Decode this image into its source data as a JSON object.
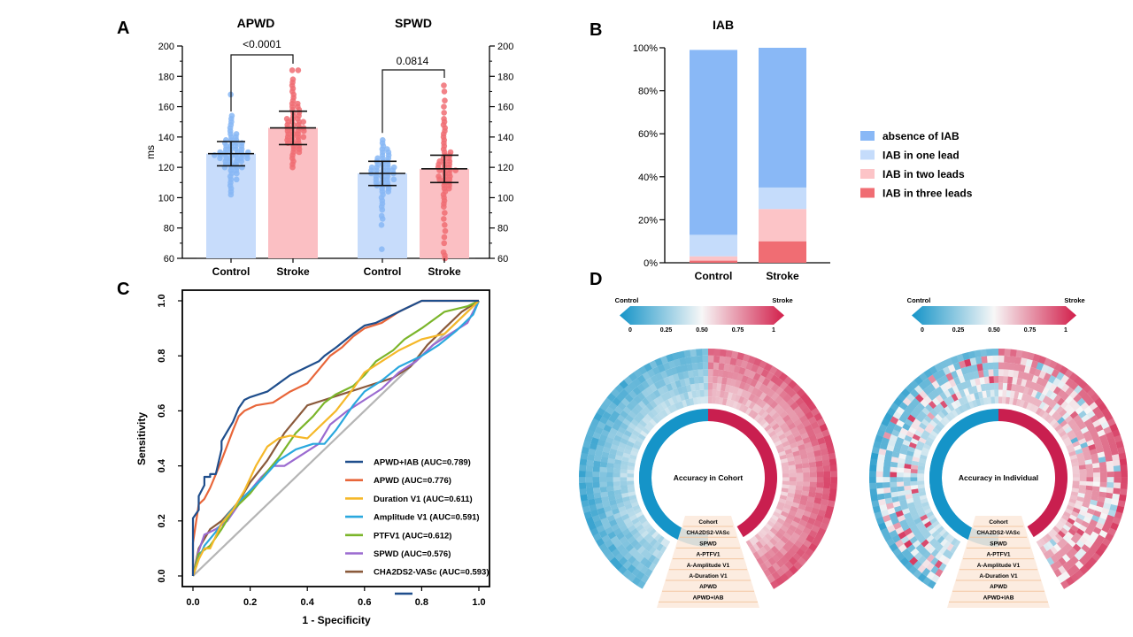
{
  "colors": {
    "control_fill": "#c7dcfb",
    "control_dot": "#87b7f5",
    "stroke_fill": "#fbbfc3",
    "stroke_dot": "#f06d73",
    "absence": "#89b8f6",
    "one_lead": "#c5dcfb",
    "two_leads": "#fcc4c7",
    "three_leads": "#f06d73",
    "heat_low": "#1594c8",
    "heat_high": "#d21f4b"
  },
  "panels": {
    "a": "A",
    "b": "B",
    "c": "C",
    "d": "D"
  },
  "chart_data": [
    {
      "id": "A",
      "type": "bar",
      "ylabel": "ms",
      "ylim": [
        60,
        200
      ],
      "yticks": [
        60,
        80,
        100,
        120,
        140,
        160,
        180,
        200
      ],
      "groups": [
        {
          "title": "APWD",
          "p_value": "<0.0001",
          "categories": [
            "Control",
            "Stroke"
          ],
          "means": [
            129,
            146
          ],
          "sd": [
            8,
            11
          ],
          "points": [
            [
              104,
              106,
              108,
              110,
              112,
              112,
              114,
              116,
              116,
              118,
              118,
              120,
              120,
              120,
              122,
              122,
              122,
              124,
              124,
              124,
              124,
              126,
              126,
              126,
              126,
              126,
              128,
              128,
              128,
              128,
              128,
              128,
              130,
              130,
              130,
              130,
              130,
              132,
              132,
              132,
              132,
              134,
              134,
              134,
              134,
              136,
              136,
              136,
              138,
              138,
              138,
              140,
              140,
              142,
              142,
              144,
              146,
              148,
              150,
              152,
              154,
              168,
              102,
              120,
              126,
              130,
              136,
              128
            ],
            [
              120,
              122,
              124,
              126,
              128,
              130,
              130,
              132,
              132,
              134,
              134,
              136,
              136,
              138,
              138,
              138,
              140,
              140,
              140,
              142,
              142,
              142,
              144,
              144,
              144,
              144,
              146,
              146,
              146,
              148,
              148,
              148,
              150,
              150,
              150,
              152,
              152,
              152,
              154,
              154,
              156,
              156,
              158,
              158,
              160,
              160,
              162,
              162,
              164,
              166,
              168,
              170,
              172,
              174,
              176,
              178,
              184,
              184,
              140,
              146,
              136,
              150
            ]
          ]
        },
        {
          "title": "SPWD",
          "p_value": "0.0814",
          "categories": [
            "Control",
            "Stroke"
          ],
          "means": [
            116,
            119
          ],
          "sd": [
            8,
            9
          ],
          "points": [
            [
              66,
              82,
              86,
              88,
              92,
              94,
              96,
              98,
              100,
              102,
              104,
              104,
              106,
              106,
              108,
              108,
              110,
              110,
              110,
              112,
              112,
              112,
              114,
              114,
              114,
              116,
              116,
              116,
              116,
              118,
              118,
              118,
              118,
              120,
              120,
              120,
              120,
              122,
              122,
              122,
              124,
              124,
              124,
              126,
              126,
              126,
              128,
              128,
              130,
              130,
              132,
              132,
              134,
              136,
              138,
              116,
              112,
              120,
              108,
              118
            ],
            [
              60,
              62,
              64,
              70,
              74,
              78,
              82,
              86,
              90,
              94,
              96,
              98,
              100,
              102,
              104,
              106,
              106,
              108,
              108,
              110,
              110,
              112,
              112,
              114,
              114,
              114,
              116,
              116,
              118,
              118,
              118,
              120,
              120,
              120,
              122,
              122,
              122,
              124,
              124,
              126,
              126,
              128,
              128,
              130,
              130,
              132,
              134,
              136,
              138,
              140,
              142,
              144,
              146,
              148,
              150,
              152,
              156,
              160,
              164,
              170,
              174,
              118,
              112,
              124
            ]
          ]
        }
      ]
    },
    {
      "id": "B",
      "type": "bar",
      "title": "IAB",
      "categories": [
        "Control",
        "Stroke"
      ],
      "yticks": [
        "0%",
        "20%",
        "40%",
        "60%",
        "80%",
        "100%"
      ],
      "ylim": [
        0,
        100
      ],
      "series": [
        {
          "name": "IAB in three leads",
          "values": [
            1,
            10
          ]
        },
        {
          "name": "IAB in two leads",
          "values": [
            2,
            15
          ]
        },
        {
          "name": "IAB in one lead",
          "values": [
            10,
            10
          ]
        },
        {
          "name": "absence of IAB",
          "values": [
            86,
            65
          ]
        }
      ],
      "legend": [
        "absence of IAB",
        "IAB in one lead",
        "IAB in two leads",
        "IAB in three leads"
      ]
    },
    {
      "id": "C",
      "type": "line",
      "xlabel": "1 - Specificity",
      "ylabel": "Sensitivity",
      "xlim": [
        0,
        1
      ],
      "ylim": [
        0,
        1
      ],
      "ticks": [
        "0.0",
        "0.2",
        "0.4",
        "0.6",
        "0.8",
        "1.0"
      ],
      "series": [
        {
          "name": "APWD+IAB (AUC=0.789)",
          "color": "#1f4e8c",
          "x": [
            0,
            0,
            0.02,
            0.02,
            0.04,
            0.04,
            0.06,
            0.06,
            0.08,
            0.1,
            0.1,
            0.14,
            0.16,
            0.18,
            0.2,
            0.26,
            0.3,
            0.34,
            0.4,
            0.44,
            0.46,
            0.5,
            0.56,
            0.6,
            0.64,
            0.68,
            0.7,
            0.74,
            0.8,
            0.9,
            1
          ],
          "y": [
            0,
            0.21,
            0.24,
            0.29,
            0.33,
            0.36,
            0.36,
            0.37,
            0.37,
            0.46,
            0.49,
            0.56,
            0.61,
            0.64,
            0.65,
            0.67,
            0.7,
            0.73,
            0.76,
            0.78,
            0.8,
            0.83,
            0.88,
            0.91,
            0.92,
            0.94,
            0.95,
            0.97,
            1,
            1,
            1
          ]
        },
        {
          "name": "APWD (AUC=0.776)",
          "color": "#e8663a",
          "x": [
            0,
            0,
            0.02,
            0.04,
            0.06,
            0.1,
            0.14,
            0.16,
            0.18,
            0.22,
            0.28,
            0.34,
            0.4,
            0.44,
            0.48,
            0.52,
            0.56,
            0.6,
            0.66,
            0.72,
            0.8,
            0.9,
            1
          ],
          "y": [
            0,
            0.12,
            0.26,
            0.28,
            0.32,
            0.42,
            0.53,
            0.58,
            0.6,
            0.62,
            0.63,
            0.67,
            0.7,
            0.75,
            0.8,
            0.83,
            0.87,
            0.9,
            0.92,
            0.96,
            1,
            1,
            1
          ]
        },
        {
          "name": "Duration V1 (AUC=0.611)",
          "color": "#f5b829",
          "x": [
            0,
            0.02,
            0.04,
            0.06,
            0.1,
            0.14,
            0.18,
            0.22,
            0.26,
            0.3,
            0.34,
            0.4,
            0.44,
            0.5,
            0.56,
            0.6,
            0.66,
            0.72,
            0.8,
            0.88,
            0.94,
            1
          ],
          "y": [
            0,
            0.06,
            0.1,
            0.1,
            0.19,
            0.24,
            0.31,
            0.4,
            0.47,
            0.5,
            0.51,
            0.5,
            0.54,
            0.6,
            0.68,
            0.74,
            0.78,
            0.82,
            0.86,
            0.88,
            0.94,
            1
          ]
        },
        {
          "name": "Amplitude V1 (AUC=0.591)",
          "color": "#2aa8de",
          "x": [
            0,
            0.02,
            0.04,
            0.08,
            0.12,
            0.16,
            0.2,
            0.24,
            0.3,
            0.36,
            0.42,
            0.46,
            0.5,
            0.56,
            0.6,
            0.66,
            0.72,
            0.8,
            0.86,
            0.92,
            0.98,
            1
          ],
          "y": [
            0,
            0.06,
            0.11,
            0.16,
            0.22,
            0.27,
            0.31,
            0.35,
            0.42,
            0.46,
            0.48,
            0.48,
            0.53,
            0.62,
            0.67,
            0.71,
            0.76,
            0.8,
            0.84,
            0.89,
            0.95,
            1
          ]
        },
        {
          "name": "PTFV1 (AUC=0.612)",
          "color": "#7bb52a",
          "x": [
            0,
            0.02,
            0.06,
            0.1,
            0.14,
            0.2,
            0.26,
            0.3,
            0.36,
            0.42,
            0.46,
            0.5,
            0.56,
            0.6,
            0.64,
            0.7,
            0.74,
            0.8,
            0.88,
            0.96,
            1
          ],
          "y": [
            0,
            0.08,
            0.11,
            0.17,
            0.24,
            0.3,
            0.38,
            0.43,
            0.52,
            0.58,
            0.63,
            0.66,
            0.69,
            0.73,
            0.78,
            0.82,
            0.86,
            0.9,
            0.96,
            0.98,
            1
          ]
        },
        {
          "name": "SPWD (AUC=0.576)",
          "color": "#9b6bd0",
          "x": [
            0,
            0.02,
            0.04,
            0.08,
            0.12,
            0.16,
            0.2,
            0.24,
            0.28,
            0.32,
            0.38,
            0.44,
            0.48,
            0.54,
            0.6,
            0.66,
            0.72,
            0.78,
            0.84,
            0.9,
            0.96,
            1
          ],
          "y": [
            0,
            0.09,
            0.15,
            0.17,
            0.2,
            0.26,
            0.31,
            0.36,
            0.4,
            0.4,
            0.44,
            0.48,
            0.55,
            0.6,
            0.64,
            0.68,
            0.74,
            0.78,
            0.84,
            0.88,
            0.92,
            1
          ]
        },
        {
          "name": "CHA2DS2-VASc (AUC=0.593)",
          "color": "#8a5a3b",
          "x": [
            0,
            0.02,
            0.06,
            0.1,
            0.16,
            0.2,
            0.26,
            0.32,
            0.4,
            0.46,
            0.52,
            0.58,
            0.64,
            0.7,
            0.76,
            0.82,
            0.88,
            0.94,
            1
          ],
          "y": [
            0,
            0.1,
            0.17,
            0.2,
            0.27,
            0.34,
            0.42,
            0.52,
            0.62,
            0.64,
            0.66,
            0.68,
            0.7,
            0.72,
            0.76,
            0.84,
            0.9,
            0.96,
            1
          ]
        }
      ],
      "reference": {
        "x": [
          0,
          1
        ],
        "y": [
          0,
          1
        ]
      }
    },
    {
      "id": "D",
      "type": "heatmap",
      "colorbar": {
        "ticks": [
          "0",
          "0.25",
          "0.50",
          "0.75",
          "1"
        ],
        "left_label": "Control",
        "right_label": "Stroke"
      },
      "rows": [
        "Cohort",
        "CHA2DS2-VASc",
        "SPWD",
        "A-PTFV1",
        "A-Amplitude V1",
        "A-Duration V1",
        "APWD",
        "APWD+IAB"
      ],
      "charts": [
        {
          "center_label": "Accuracy in Cohort"
        },
        {
          "center_label": "Accuracy in Individual"
        }
      ]
    }
  ]
}
